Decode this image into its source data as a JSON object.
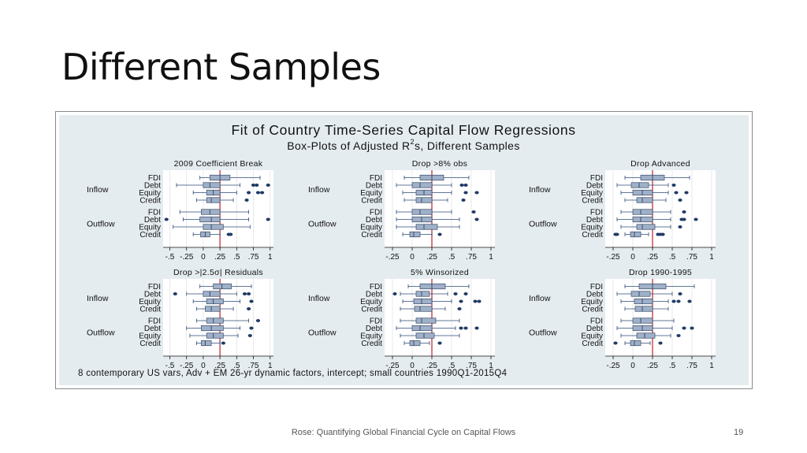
{
  "slide": {
    "title": "Different Samples",
    "footer": "Rose: Quantifying Global Financial Cycle on Capital Flows",
    "page_number": "19"
  },
  "chart_data": {
    "type": "box",
    "title": "Fit of Country Time-Series Capital Flow Regressions",
    "subtitle": "Box-Plots of Adjusted R",
    "subtitle_sup": "2",
    "subtitle_tail": "s, Different Samples",
    "note": "8 contemporary US vars, Adv + EM 26-yr dynamic factors, intercept; small countries 1990Q1-2015Q4",
    "groups": [
      "Inflow",
      "Outflow"
    ],
    "categories": [
      "FDI",
      "Debt",
      "Equity",
      "Credit"
    ],
    "reference_line": 0.25,
    "colors": {
      "box": "#9fb0c8",
      "box_border": "#3a4d6a",
      "whisker": "#2d4a78",
      "outlier": "#1f3b66",
      "reference": "#c0202a",
      "grid": "#dddddd"
    },
    "panels": [
      {
        "title": "2009 Coefficient Break",
        "xlim": [
          -0.6,
          1.05
        ],
        "ticks": [
          -0.5,
          -0.25,
          0,
          0.25,
          0.5,
          0.75,
          1
        ],
        "tick_labels": [
          "-.5",
          "-.25",
          "0",
          ".25",
          ".5",
          ".75",
          "1"
        ],
        "boxes": [
          {
            "min": -0.05,
            "q1": 0.1,
            "med": 0.25,
            "q3": 0.4,
            "max": 0.85,
            "out": []
          },
          {
            "min": -0.4,
            "q1": 0.0,
            "med": 0.1,
            "q3": 0.25,
            "max": 0.55,
            "out": [
              0.75,
              0.8,
              0.97
            ]
          },
          {
            "min": -0.15,
            "q1": 0.05,
            "med": 0.15,
            "q3": 0.25,
            "max": 0.5,
            "out": [
              0.68,
              0.82,
              0.88
            ]
          },
          {
            "min": -0.1,
            "q1": 0.05,
            "med": 0.12,
            "q3": 0.25,
            "max": 0.45,
            "out": [
              0.65
            ]
          },
          {
            "min": -0.35,
            "q1": -0.03,
            "med": 0.1,
            "q3": 0.25,
            "max": 0.68,
            "out": []
          },
          {
            "min": -0.3,
            "q1": -0.05,
            "med": 0.12,
            "q3": 0.25,
            "max": 0.68,
            "out": [
              -0.55,
              0.97
            ]
          },
          {
            "min": -0.45,
            "q1": 0.0,
            "med": 0.12,
            "q3": 0.3,
            "max": 0.7,
            "out": []
          },
          {
            "min": -0.15,
            "q1": -0.04,
            "med": 0.03,
            "q3": 0.1,
            "max": 0.25,
            "out": [
              0.38,
              0.41
            ]
          }
        ]
      },
      {
        "title": "Drop >8% obs",
        "xlim": [
          -0.35,
          1.05
        ],
        "ticks": [
          -0.25,
          0,
          0.25,
          0.5,
          0.75,
          1
        ],
        "tick_labels": [
          "-.25",
          "0",
          ".25",
          ".5",
          ".75",
          "1"
        ],
        "boxes": [
          {
            "min": -0.1,
            "q1": 0.1,
            "med": 0.25,
            "q3": 0.4,
            "max": 0.72,
            "out": []
          },
          {
            "min": -0.2,
            "q1": 0.0,
            "med": 0.1,
            "q3": 0.25,
            "max": 0.5,
            "out": [
              0.63,
              0.68
            ]
          },
          {
            "min": -0.12,
            "q1": 0.05,
            "med": 0.15,
            "q3": 0.25,
            "max": 0.5,
            "out": [
              0.68,
              0.82
            ]
          },
          {
            "min": -0.1,
            "q1": 0.05,
            "med": 0.12,
            "q3": 0.25,
            "max": 0.45,
            "out": [
              0.65
            ]
          },
          {
            "min": -0.2,
            "q1": 0.0,
            "med": 0.1,
            "q3": 0.25,
            "max": 0.5,
            "out": [
              0.78
            ]
          },
          {
            "min": -0.2,
            "q1": 0.0,
            "med": 0.12,
            "q3": 0.25,
            "max": 0.6,
            "out": [
              0.82
            ]
          },
          {
            "min": -0.2,
            "q1": 0.05,
            "med": 0.15,
            "q3": 0.32,
            "max": 0.6,
            "out": []
          },
          {
            "min": -0.12,
            "q1": -0.03,
            "med": 0.02,
            "q3": 0.1,
            "max": 0.25,
            "out": [
              0.35
            ]
          }
        ]
      },
      {
        "title": "Drop Advanced",
        "xlim": [
          -0.35,
          1.05
        ],
        "ticks": [
          -0.25,
          0,
          0.25,
          0.5,
          0.75,
          1
        ],
        "tick_labels": [
          "-.25",
          "0",
          ".25",
          ".5",
          ".75",
          "1"
        ],
        "boxes": [
          {
            "min": -0.1,
            "q1": 0.1,
            "med": 0.25,
            "q3": 0.4,
            "max": 0.72,
            "out": []
          },
          {
            "min": -0.2,
            "q1": -0.02,
            "med": 0.08,
            "q3": 0.2,
            "max": 0.45,
            "out": [
              0.52
            ]
          },
          {
            "min": -0.15,
            "q1": 0.0,
            "med": 0.12,
            "q3": 0.25,
            "max": 0.45,
            "out": [
              0.55,
              0.68
            ]
          },
          {
            "min": -0.1,
            "q1": 0.05,
            "med": 0.12,
            "q3": 0.25,
            "max": 0.42,
            "out": [
              0.6
            ]
          },
          {
            "min": -0.15,
            "q1": 0.0,
            "med": 0.1,
            "q3": 0.25,
            "max": 0.48,
            "out": [
              0.65
            ]
          },
          {
            "min": -0.2,
            "q1": 0.0,
            "med": 0.1,
            "q3": 0.25,
            "max": 0.48,
            "out": [
              0.62,
              0.65,
              0.8
            ]
          },
          {
            "min": -0.15,
            "q1": 0.05,
            "med": 0.12,
            "q3": 0.28,
            "max": 0.48,
            "out": [
              0.6
            ]
          },
          {
            "min": -0.1,
            "q1": -0.03,
            "med": 0.02,
            "q3": 0.1,
            "max": 0.2,
            "out": [
              -0.22,
              -0.2,
              0.32,
              0.35,
              0.38
            ]
          }
        ]
      },
      {
        "title": "Drop >|2.5σ| Residuals",
        "xlim": [
          -0.6,
          1.05
        ],
        "ticks": [
          -0.5,
          -0.25,
          0,
          0.25,
          0.5,
          0.75,
          1
        ],
        "tick_labels": [
          "-.5",
          "-.25",
          "0",
          ".25",
          ".5",
          ".75",
          "1"
        ],
        "boxes": [
          {
            "min": -0.05,
            "q1": 0.15,
            "med": 0.28,
            "q3": 0.42,
            "max": 0.72,
            "out": []
          },
          {
            "min": -0.25,
            "q1": 0.0,
            "med": 0.1,
            "q3": 0.25,
            "max": 0.5,
            "out": [
              -0.42,
              0.62,
              0.68
            ]
          },
          {
            "min": -0.15,
            "q1": 0.05,
            "med": 0.15,
            "q3": 0.3,
            "max": 0.55,
            "out": [
              0.72
            ]
          },
          {
            "min": -0.1,
            "q1": 0.03,
            "med": 0.12,
            "q3": 0.25,
            "max": 0.45,
            "out": [
              0.68
            ]
          },
          {
            "min": -0.1,
            "q1": 0.05,
            "med": 0.15,
            "q3": 0.3,
            "max": 0.68,
            "out": [
              0.82
            ]
          },
          {
            "min": -0.25,
            "q1": -0.03,
            "med": 0.12,
            "q3": 0.3,
            "max": 0.55,
            "out": [
              0.72
            ]
          },
          {
            "min": -0.2,
            "q1": 0.05,
            "med": 0.15,
            "q3": 0.3,
            "max": 0.52,
            "out": [
              0.7
            ]
          },
          {
            "min": -0.1,
            "q1": -0.03,
            "med": 0.03,
            "q3": 0.12,
            "max": 0.25,
            "out": [
              0.3
            ]
          }
        ]
      },
      {
        "title": "5% Winsorized",
        "xlim": [
          -0.35,
          1.05
        ],
        "ticks": [
          -0.25,
          0,
          0.25,
          0.5,
          0.75,
          1
        ],
        "tick_labels": [
          "-.25",
          "0",
          ".25",
          ".5",
          ".75",
          "1"
        ],
        "boxes": [
          {
            "min": -0.05,
            "q1": 0.1,
            "med": 0.25,
            "q3": 0.42,
            "max": 0.72,
            "out": []
          },
          {
            "min": -0.15,
            "q1": 0.05,
            "med": 0.12,
            "q3": 0.22,
            "max": 0.45,
            "out": [
              -0.22,
              0.55,
              0.68
            ]
          },
          {
            "min": -0.12,
            "q1": 0.02,
            "med": 0.12,
            "q3": 0.25,
            "max": 0.5,
            "out": [
              0.62,
              0.8,
              0.85
            ]
          },
          {
            "min": -0.15,
            "q1": 0.03,
            "med": 0.1,
            "q3": 0.25,
            "max": 0.42,
            "out": [
              0.6
            ]
          },
          {
            "min": -0.15,
            "q1": 0.05,
            "med": 0.12,
            "q3": 0.3,
            "max": 0.6,
            "out": []
          },
          {
            "min": -0.2,
            "q1": 0.0,
            "med": 0.1,
            "q3": 0.25,
            "max": 0.55,
            "out": [
              0.62,
              0.68,
              0.82
            ]
          },
          {
            "min": -0.15,
            "q1": 0.05,
            "med": 0.15,
            "q3": 0.28,
            "max": 0.6,
            "out": []
          },
          {
            "min": -0.1,
            "q1": -0.03,
            "med": 0.02,
            "q3": 0.1,
            "max": 0.22,
            "out": [
              0.35
            ]
          }
        ]
      },
      {
        "title": "Drop 1990-1995",
        "xlim": [
          -0.35,
          1.05
        ],
        "ticks": [
          -0.25,
          0,
          0.25,
          0.5,
          0.75,
          1
        ],
        "tick_labels": [
          "-.25",
          "0",
          ".25",
          ".5",
          ".75",
          "1"
        ],
        "boxes": [
          {
            "min": -0.1,
            "q1": 0.08,
            "med": 0.25,
            "q3": 0.42,
            "max": 0.78,
            "out": []
          },
          {
            "min": -0.2,
            "q1": -0.02,
            "med": 0.08,
            "q3": 0.22,
            "max": 0.5,
            "out": [
              0.6
            ]
          },
          {
            "min": -0.15,
            "q1": 0.02,
            "med": 0.12,
            "q3": 0.25,
            "max": 0.45,
            "out": [
              0.52,
              0.58,
              0.72
            ]
          },
          {
            "min": -0.1,
            "q1": 0.03,
            "med": 0.12,
            "q3": 0.25,
            "max": 0.45,
            "out": []
          },
          {
            "min": -0.15,
            "q1": 0.0,
            "med": 0.1,
            "q3": 0.25,
            "max": 0.52,
            "out": []
          },
          {
            "min": -0.2,
            "q1": 0.0,
            "med": 0.12,
            "q3": 0.25,
            "max": 0.5,
            "out": [
              0.65,
              0.75
            ]
          },
          {
            "min": -0.15,
            "q1": 0.05,
            "med": 0.15,
            "q3": 0.28,
            "max": 0.48,
            "out": [
              0.58
            ]
          },
          {
            "min": -0.1,
            "q1": -0.03,
            "med": 0.02,
            "q3": 0.1,
            "max": 0.22,
            "out": [
              -0.22,
              0.35
            ]
          }
        ]
      }
    ]
  }
}
